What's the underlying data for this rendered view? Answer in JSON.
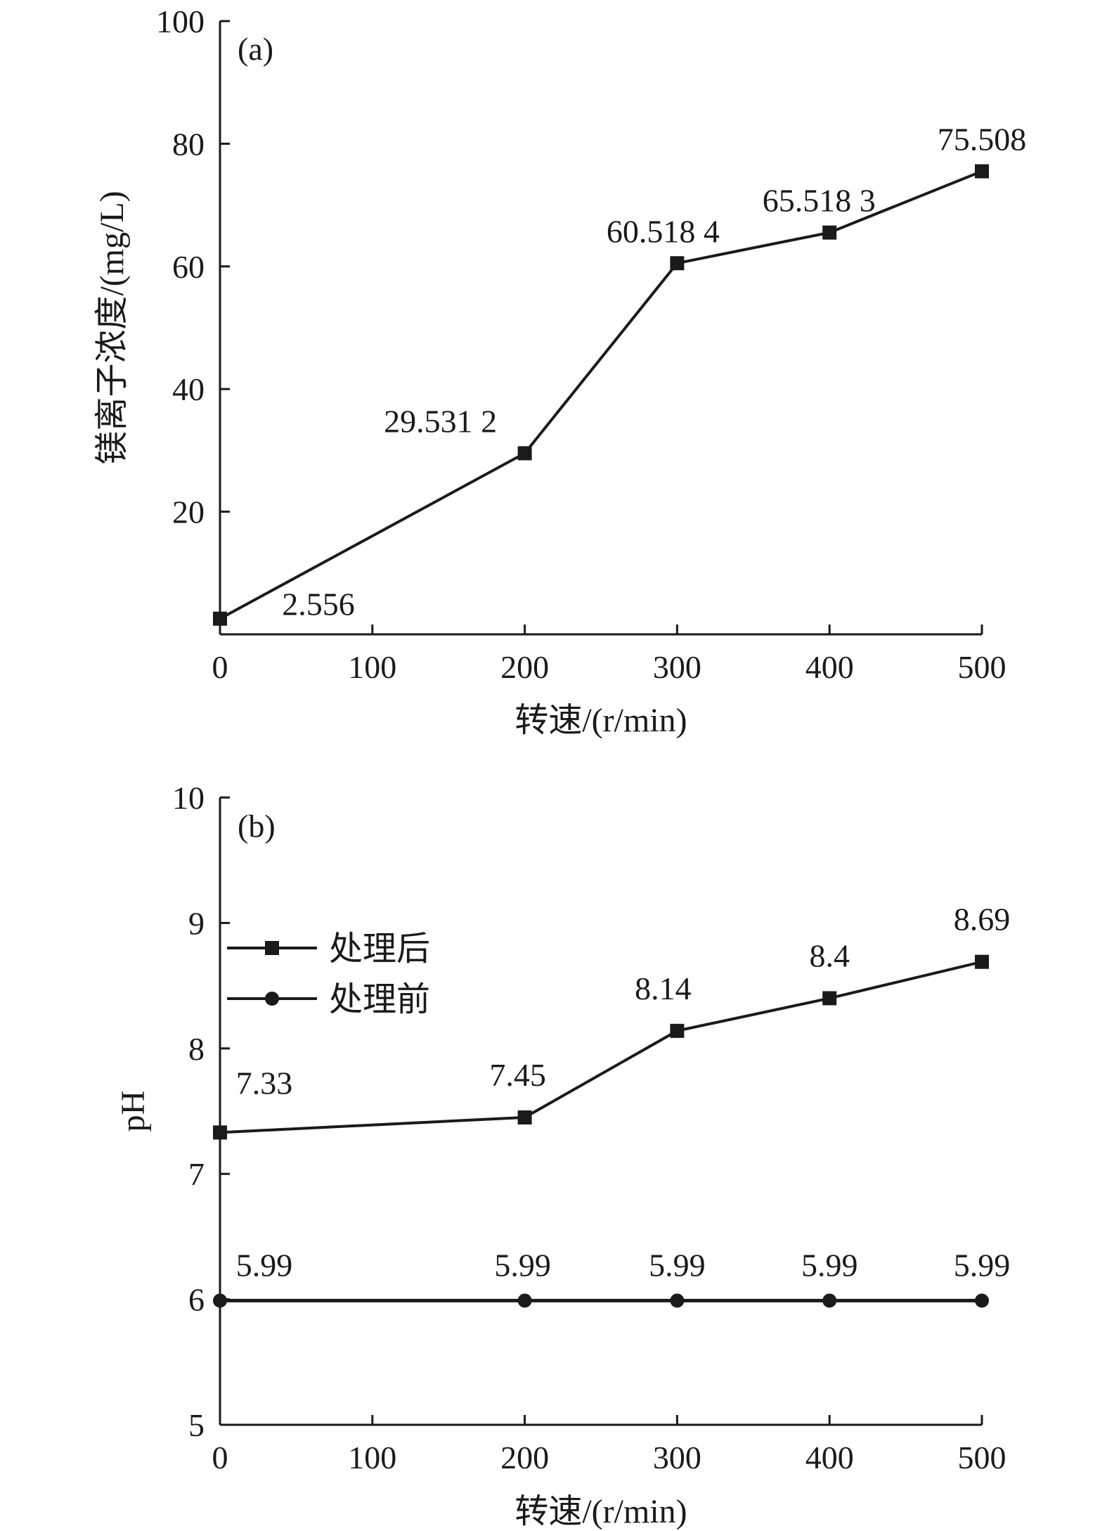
{
  "chart_data": [
    {
      "panel": "(a)",
      "type": "line",
      "xlabel": "转速/(r/min)",
      "ylabel": "镁离子浓度/(mg/L)",
      "xlim": [
        0,
        500
      ],
      "ylim": [
        0,
        100
      ],
      "x_ticks": [
        0,
        100,
        200,
        300,
        400,
        500
      ],
      "y_ticks": [
        20,
        40,
        60,
        80,
        100
      ],
      "grid": false,
      "series": [
        {
          "marker": "square",
          "x": [
            0,
            200,
            300,
            400,
            500
          ],
          "values": [
            2.556,
            29.5312,
            60.5184,
            65.5183,
            75.508
          ],
          "labels": [
            "2.556",
            "29.531 2",
            "60.518 4",
            "65.518 3",
            "75.508"
          ]
        }
      ]
    },
    {
      "panel": "(b)",
      "type": "line",
      "xlabel": "转速/(r/min)",
      "ylabel": "pH",
      "xlim": [
        0,
        500
      ],
      "ylim": [
        5,
        10
      ],
      "x_ticks": [
        0,
        100,
        200,
        300,
        400,
        500
      ],
      "y_ticks": [
        5,
        6,
        7,
        8,
        9,
        10
      ],
      "grid": false,
      "legend_position": "upper-left",
      "series": [
        {
          "name": "处理后",
          "marker": "square",
          "x": [
            0,
            200,
            300,
            400,
            500
          ],
          "values": [
            7.33,
            7.45,
            8.14,
            8.4,
            8.69
          ],
          "labels": [
            "7.33",
            "7.45",
            "8.14",
            "8.4",
            "8.69"
          ]
        },
        {
          "name": "处理前",
          "marker": "circle",
          "x": [
            0,
            200,
            300,
            400,
            500
          ],
          "values": [
            5.99,
            5.99,
            5.99,
            5.99,
            5.99
          ],
          "labels": [
            "5.99",
            "5.99",
            "5.99",
            "5.99",
            "5.99"
          ]
        }
      ]
    }
  ]
}
